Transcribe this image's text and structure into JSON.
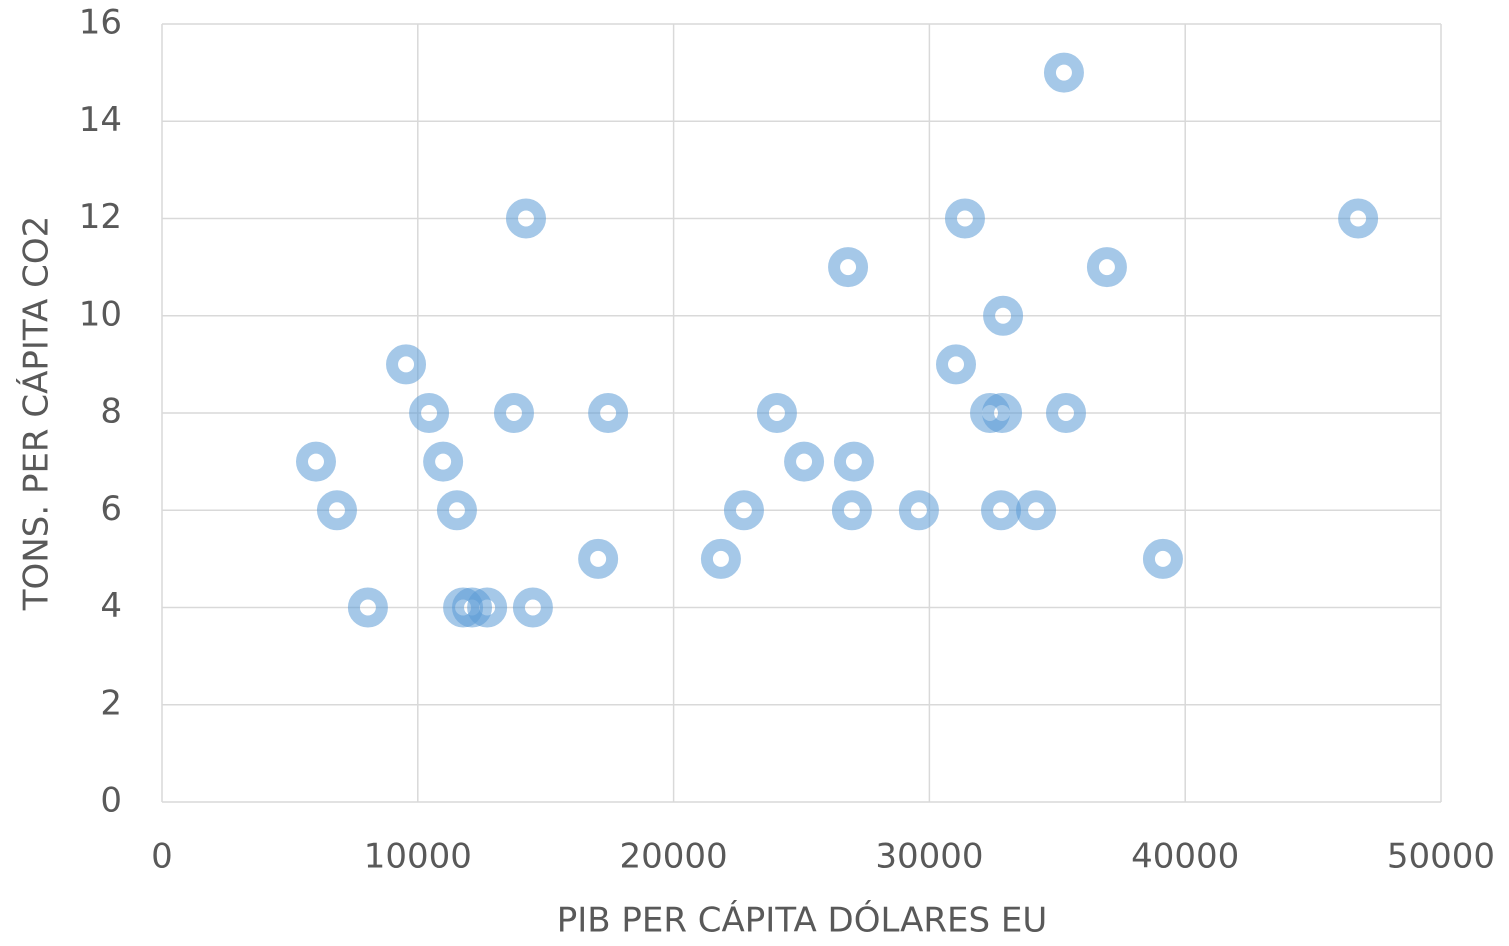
{
  "chart_data": {
    "type": "scatter",
    "x_label": "PIB PER CÁPITA DÓLARES EU",
    "y_label": "TONS. PER CÁPITA CO2",
    "series": [
      {
        "color": "#5b9bd5",
        "x": [
          35260,
          14230,
          31390,
          46760,
          26820,
          36940,
          32880,
          9540,
          31040,
          10440,
          13760,
          17440,
          24040,
          32370,
          32840,
          35340,
          6020,
          10990,
          25100,
          27050,
          6840,
          11530,
          22750,
          26970,
          29590,
          32800,
          34170,
          17050,
          21850,
          39130,
          8050,
          11770,
          12120,
          12710,
          14500
        ],
        "values": [
          15,
          12,
          12,
          12,
          11,
          11,
          10,
          9,
          9,
          8,
          8,
          8,
          8,
          8,
          8,
          8,
          7,
          7,
          7,
          7,
          6,
          6,
          6,
          6,
          6,
          6,
          6,
          5,
          5,
          5,
          4,
          4,
          4,
          4,
          4
        ]
      }
    ],
    "xlim": [
      0,
      50000
    ],
    "xticks": [
      0,
      10000,
      20000,
      30000,
      40000,
      50000
    ],
    "ylim": [
      0,
      16
    ],
    "yticks": [
      0,
      2,
      4,
      6,
      8,
      10,
      12,
      14,
      16
    ],
    "grid": true
  }
}
